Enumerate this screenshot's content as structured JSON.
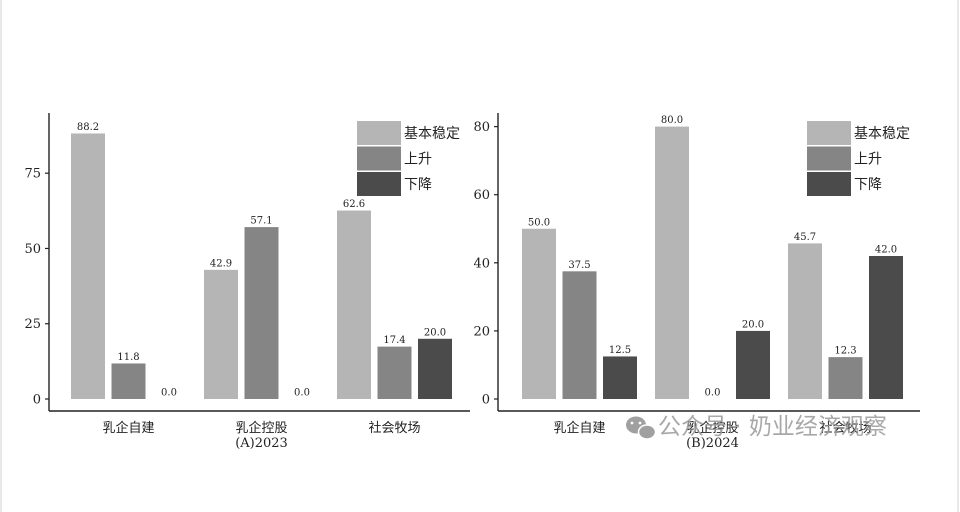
{
  "colors": {
    "stable": "#b5b5b5",
    "rise": "#858585",
    "fall": "#4b4b4b"
  },
  "watermark": {
    "text": "公众号 · 奶业经济观察",
    "icon": "wechat-icon"
  },
  "chart_data": [
    {
      "type": "bar",
      "title": "",
      "xlabel": "(A)2023",
      "ylabel": "",
      "categories": [
        "乳企自建",
        "乳企控股",
        "社会牧场"
      ],
      "ylim": [
        0,
        95
      ],
      "yticks": [
        0,
        25,
        50,
        75
      ],
      "legend_position": "top-right",
      "series": [
        {
          "name": "基本稳定",
          "values": [
            88.2,
            42.9,
            62.6
          ]
        },
        {
          "name": "上升",
          "values": [
            11.8,
            57.1,
            17.4
          ]
        },
        {
          "name": "下降",
          "values": [
            0.0,
            0.0,
            20.0
          ]
        }
      ]
    },
    {
      "type": "bar",
      "title": "",
      "xlabel": "(B)2024",
      "ylabel": "",
      "categories": [
        "乳企自建",
        "乳企控股",
        "社会牧场"
      ],
      "ylim": [
        0,
        84
      ],
      "yticks": [
        0,
        20,
        40,
        60,
        80
      ],
      "legend_position": "top-right",
      "series": [
        {
          "name": "基本稳定",
          "values": [
            50.0,
            80.0,
            45.7
          ]
        },
        {
          "name": "上升",
          "values": [
            37.5,
            0.0,
            12.3
          ]
        },
        {
          "name": "下降",
          "values": [
            12.5,
            20.0,
            42.0
          ]
        }
      ]
    }
  ]
}
